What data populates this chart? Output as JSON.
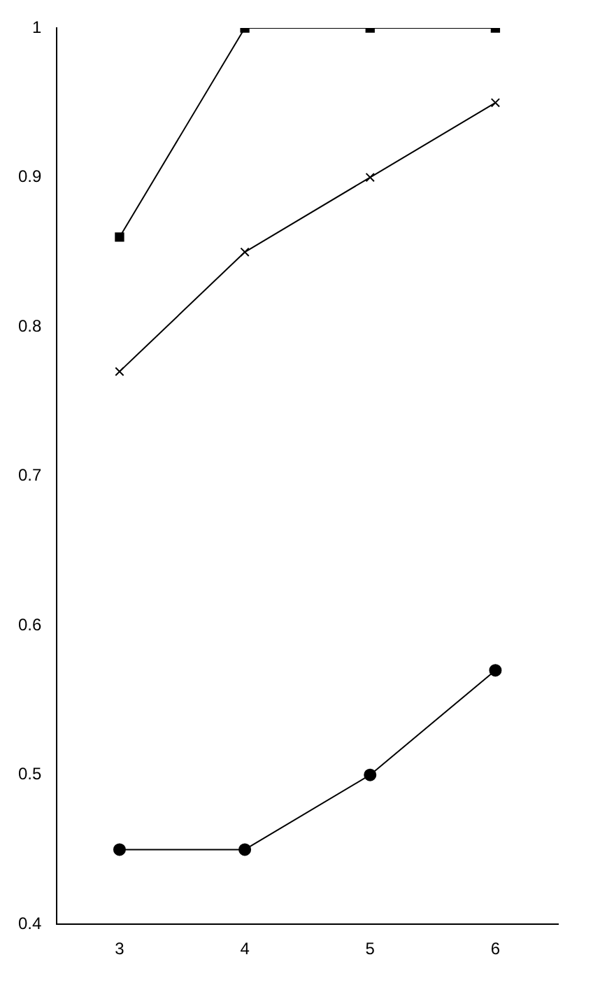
{
  "chart_data": {
    "type": "line",
    "categories": [
      "3",
      "4",
      "5",
      "6"
    ],
    "series": [
      {
        "color": "#000000",
        "marker": "square",
        "values": [
          0.86,
          1.0,
          1.0,
          1.0
        ]
      },
      {
        "color": "#000000",
        "marker": "cross",
        "values": [
          0.77,
          0.85,
          0.9,
          0.95
        ]
      },
      {
        "color": "#000000",
        "marker": "circle",
        "values": [
          0.45,
          0.45,
          0.5,
          0.57
        ]
      }
    ],
    "ylim": [
      0.4,
      1
    ],
    "yticks": [
      {
        "value": 0.4,
        "label": "0.4"
      },
      {
        "value": 0.5,
        "label": "0.5"
      },
      {
        "value": 0.6,
        "label": "0.6"
      },
      {
        "value": 0.7,
        "label": "0.7"
      },
      {
        "value": 0.8,
        "label": "0.8"
      },
      {
        "value": 0.9,
        "label": "0.9"
      },
      1
    ],
    "grid": false,
    "legend": false,
    "line_style": "solid"
  }
}
